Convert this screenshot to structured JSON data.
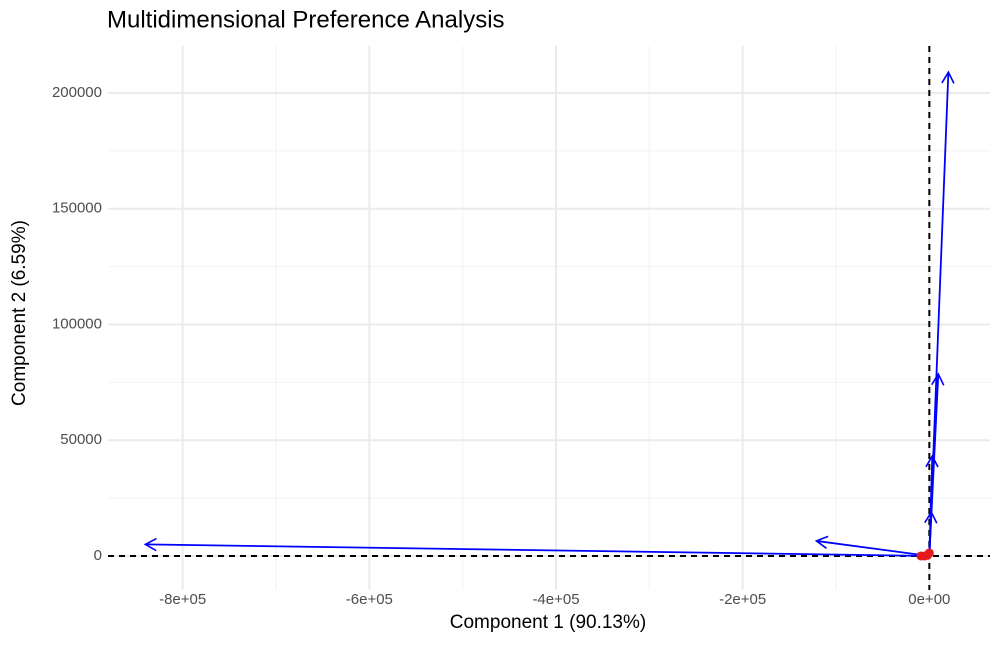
{
  "chart_data": {
    "type": "biplot",
    "title": "Multidimensional Preference Analysis",
    "x_label": "Component 1 (90.13%)",
    "y_label": "Component 2 (6.59%)",
    "xlim": [
      -880000,
      65000
    ],
    "ylim": [
      -14700,
      220300
    ],
    "xticks": [
      {
        "value": -800000,
        "label": "-8e+05"
      },
      {
        "value": -600000,
        "label": "-6e+05"
      },
      {
        "value": -400000,
        "label": "-4e+05"
      },
      {
        "value": -200000,
        "label": "-2e+05"
      },
      {
        "value": 0,
        "label": "0e+00"
      }
    ],
    "yticks": [
      0,
      50000,
      100000,
      150000,
      200000
    ],
    "xminor": [
      -700000,
      -500000,
      -300000,
      -100000
    ],
    "yminor": [
      25000,
      75000,
      125000,
      175000
    ],
    "grid": true,
    "reference_lines": {
      "x": 0,
      "y": 0
    },
    "arrows": {
      "color": "#0000ff",
      "x": [
        -840000,
        -121000,
        20400,
        9600,
        3200,
        2100
      ],
      "y": [
        5000,
        6500,
        209000,
        78600,
        43200,
        19000
      ]
    },
    "points": {
      "color": "#e41a1c",
      "x": [
        -9000,
        -5000,
        -2000,
        0
      ],
      "y": [
        0,
        0,
        300,
        1300
      ]
    }
  }
}
